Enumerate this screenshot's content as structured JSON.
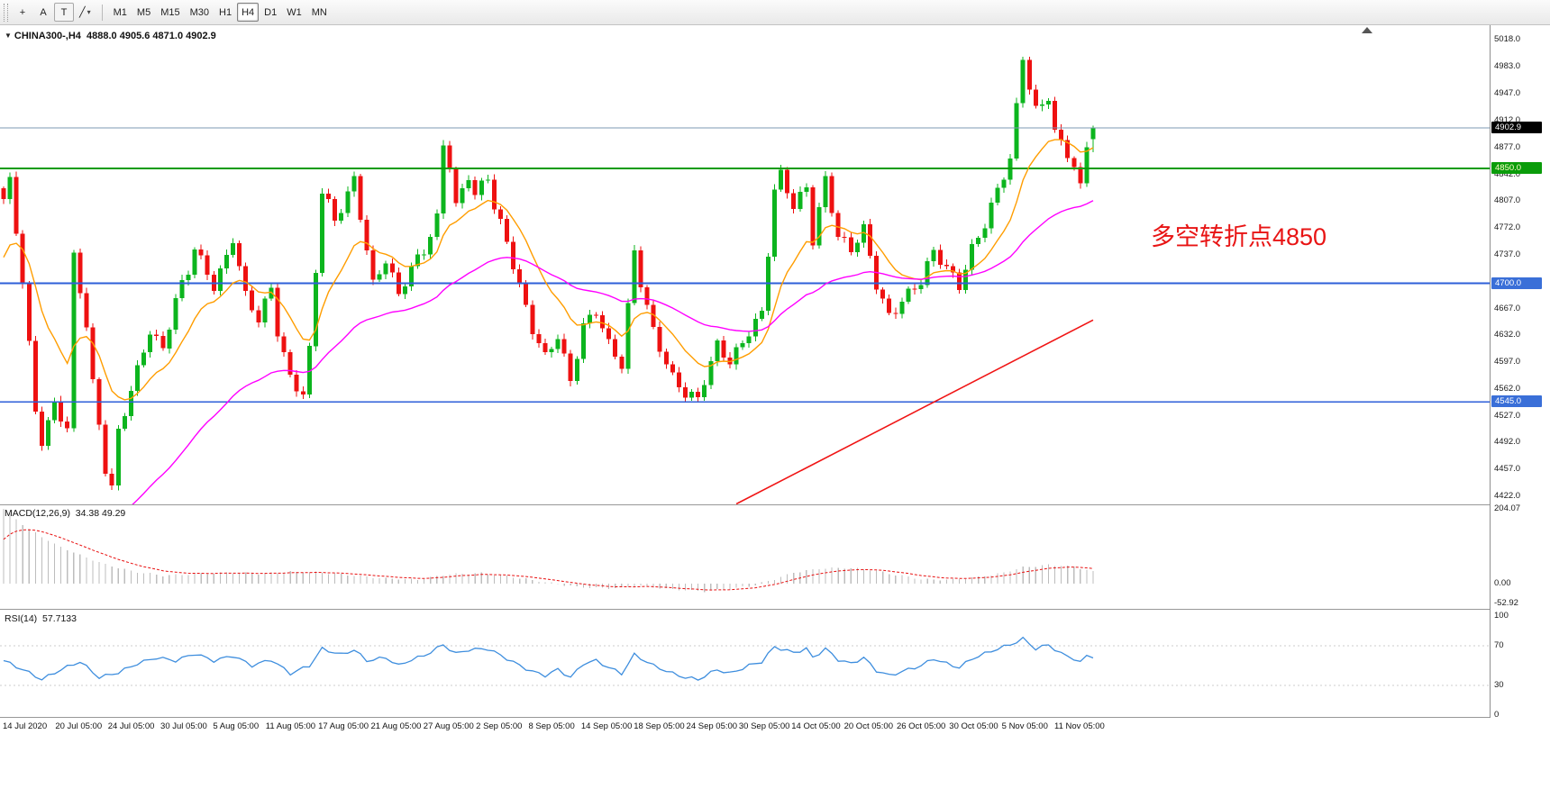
{
  "toolbar": {
    "tools": [
      {
        "id": "crosshair",
        "glyph": "+"
      },
      {
        "id": "text",
        "glyph": "A"
      },
      {
        "id": "text-frame",
        "glyph": "T",
        "boxed": true
      },
      {
        "id": "draw-shapes",
        "glyph": "╱",
        "caret": "▾"
      }
    ],
    "timeframes": [
      "M1",
      "M5",
      "M15",
      "M30",
      "H1",
      "H4",
      "D1",
      "W1",
      "MN"
    ],
    "active_timeframe": "H4"
  },
  "chart": {
    "collapse_glyph": "▼",
    "title": "CHINA300-,H4",
    "ohlc_text": "4888.0 4905.6 4871.0 4902.9",
    "annotation": "多空转折点4850"
  },
  "macd_panel": {
    "label": "MACD(12,26,9)",
    "values": "34.38 49.29"
  },
  "rsi_panel": {
    "label": "RSI(14)",
    "value": "57.7133"
  },
  "chart_data": {
    "type": "candlestick",
    "symbol": "CHINA300-",
    "period": "H4",
    "quote": {
      "open": 4888.0,
      "high": 4905.6,
      "low": 4871.0,
      "close": 4902.9
    },
    "y_axis": {
      "min": 4422.0,
      "max": 5018.0,
      "ticks": [
        5018.0,
        4983.0,
        4947.0,
        4912.0,
        4877.0,
        4842.0,
        4807.0,
        4772.0,
        4737.0,
        4702.0,
        4667.0,
        4632.0,
        4597.0,
        4562.0,
        4527.0,
        4492.0,
        4457.0,
        4422.0
      ]
    },
    "x_axis": {
      "labels": [
        "14 Jul 2020",
        "20 Jul 05:00",
        "24 Jul 05:00",
        "30 Jul 05:00",
        "5 Aug 05:00",
        "11 Aug 05:00",
        "17 Aug 05:00",
        "21 Aug 05:00",
        "27 Aug 05:00",
        "2 Sep 05:00",
        "8 Sep 05:00",
        "14 Sep 05:00",
        "18 Sep 05:00",
        "24 Sep 05:00",
        "30 Sep 05:00",
        "14 Oct 05:00",
        "20 Oct 05:00",
        "26 Oct 05:00",
        "30 Oct 05:00",
        "5 Nov 05:00",
        "11 Nov 05:00"
      ]
    },
    "levels": [
      {
        "price": 4902.9,
        "label": "4902.9",
        "line_color": "#7c98b3",
        "line_width": 1,
        "tag_bg": "#000000",
        "tag_fg": "#ffffff"
      },
      {
        "price": 4850.0,
        "label": "4850.0",
        "line_color": "#0a9c0a",
        "line_width": 2,
        "tag_bg": "#0a9c0a",
        "tag_fg": "#ffffcc"
      },
      {
        "price": 4700.0,
        "label": "4700.0",
        "line_color": "#2e5fd8",
        "line_width": 2,
        "tag_bg": "#3a6fd8",
        "tag_fg": "#ffffff"
      },
      {
        "price": 4545.0,
        "label": "4545.0",
        "line_color": "#2e5fd8",
        "line_width": 1.5,
        "tag_bg": "#3a6fd8",
        "tag_fg": "#ffffff"
      }
    ],
    "trendline": {
      "i1": 115,
      "p1": 4412,
      "i2": 171,
      "p2": 4652,
      "color": "#f01414"
    },
    "candles": {
      "count": 172,
      "wiggle": [
        7,
        1.87,
        4,
        0.53
      ],
      "path": [
        [
          0,
          4810
        ],
        [
          1,
          4830
        ],
        [
          3,
          4700
        ],
        [
          5,
          4530
        ],
        [
          6,
          4495
        ],
        [
          8,
          4545
        ],
        [
          10,
          4515
        ],
        [
          11,
          4735
        ],
        [
          12,
          4690
        ],
        [
          13,
          4645
        ],
        [
          14,
          4565
        ],
        [
          16,
          4455
        ],
        [
          17,
          4432
        ],
        [
          18,
          4505
        ],
        [
          20,
          4565
        ],
        [
          23,
          4640
        ],
        [
          25,
          4610
        ],
        [
          27,
          4675
        ],
        [
          29,
          4715
        ],
        [
          30,
          4748
        ],
        [
          33,
          4700
        ],
        [
          35,
          4735
        ],
        [
          36,
          4758
        ],
        [
          38,
          4680
        ],
        [
          40,
          4650
        ],
        [
          42,
          4695
        ],
        [
          43,
          4640
        ],
        [
          45,
          4580
        ],
        [
          47,
          4556
        ],
        [
          48,
          4610
        ],
        [
          50,
          4818
        ],
        [
          51,
          4800
        ],
        [
          52,
          4778
        ],
        [
          54,
          4818
        ],
        [
          55,
          4838
        ],
        [
          57,
          4748
        ],
        [
          58,
          4700
        ],
        [
          60,
          4730
        ],
        [
          62,
          4680
        ],
        [
          64,
          4718
        ],
        [
          66,
          4745
        ],
        [
          68,
          4788
        ],
        [
          69,
          4885
        ],
        [
          70,
          4858
        ],
        [
          71,
          4800
        ],
        [
          73,
          4838
        ],
        [
          74,
          4810
        ],
        [
          76,
          4838
        ],
        [
          77,
          4800
        ],
        [
          79,
          4758
        ],
        [
          81,
          4700
        ],
        [
          83,
          4640
        ],
        [
          85,
          4600
        ],
        [
          87,
          4628
        ],
        [
          89,
          4572
        ],
        [
          91,
          4648
        ],
        [
          93,
          4668
        ],
        [
          95,
          4620
        ],
        [
          97,
          4590
        ],
        [
          99,
          4738
        ],
        [
          100,
          4700
        ],
        [
          102,
          4640
        ],
        [
          105,
          4580
        ],
        [
          107,
          4556
        ],
        [
          109,
          4545
        ],
        [
          110,
          4570
        ],
        [
          112,
          4618
        ],
        [
          114,
          4600
        ],
        [
          117,
          4640
        ],
        [
          119,
          4660
        ],
        [
          121,
          4818
        ],
        [
          122,
          4838
        ],
        [
          124,
          4800
        ],
        [
          126,
          4828
        ],
        [
          127,
          4760
        ],
        [
          129,
          4838
        ],
        [
          131,
          4760
        ],
        [
          133,
          4740
        ],
        [
          135,
          4768
        ],
        [
          137,
          4700
        ],
        [
          139,
          4660
        ],
        [
          141,
          4680
        ],
        [
          144,
          4700
        ],
        [
          146,
          4738
        ],
        [
          148,
          4720
        ],
        [
          150,
          4700
        ],
        [
          152,
          4748
        ],
        [
          154,
          4778
        ],
        [
          156,
          4818
        ],
        [
          158,
          4858
        ],
        [
          160,
          4996
        ],
        [
          161,
          4958
        ],
        [
          162,
          4928
        ],
        [
          164,
          4948
        ],
        [
          165,
          4898
        ],
        [
          167,
          4868
        ],
        [
          168,
          4848
        ],
        [
          169,
          4820
        ],
        [
          170,
          4878
        ],
        [
          171,
          4902.9
        ]
      ]
    },
    "moving_averages": [
      {
        "period": 12,
        "seed": 4720,
        "color": "#ff9d00"
      },
      {
        "period": 45,
        "seed": 4150,
        "color": "#ff00ff"
      }
    ],
    "macd": {
      "params": "12,26,9",
      "value": 34.38,
      "signal": 49.29,
      "signal_seed": 100,
      "scale": [
        204.07,
        0.0,
        -52.92
      ],
      "path": [
        [
          0,
          204
        ],
        [
          4,
          148
        ],
        [
          8,
          108
        ],
        [
          12,
          78
        ],
        [
          16,
          52
        ],
        [
          20,
          34
        ],
        [
          25,
          22
        ],
        [
          30,
          26
        ],
        [
          35,
          30
        ],
        [
          40,
          27
        ],
        [
          45,
          32
        ],
        [
          50,
          30
        ],
        [
          55,
          22
        ],
        [
          60,
          14
        ],
        [
          65,
          11
        ],
        [
          70,
          26
        ],
        [
          75,
          28
        ],
        [
          80,
          18
        ],
        [
          85,
          4
        ],
        [
          90,
          -9
        ],
        [
          95,
          -13
        ],
        [
          100,
          -6
        ],
        [
          105,
          -16
        ],
        [
          110,
          -21
        ],
        [
          115,
          -12
        ],
        [
          118,
          -4
        ],
        [
          121,
          12
        ],
        [
          124,
          30
        ],
        [
          128,
          41
        ],
        [
          132,
          43
        ],
        [
          136,
          38
        ],
        [
          140,
          24
        ],
        [
          144,
          12
        ],
        [
          148,
          10
        ],
        [
          152,
          16
        ],
        [
          156,
          26
        ],
        [
          160,
          44
        ],
        [
          164,
          51
        ],
        [
          168,
          46
        ],
        [
          171,
          34.38
        ]
      ]
    },
    "rsi": {
      "period": 14,
      "value": 57.7133,
      "levels": [
        70,
        30
      ],
      "scale": [
        100,
        70,
        30,
        0
      ],
      "path": [
        [
          0,
          55
        ],
        [
          3,
          46
        ],
        [
          6,
          36
        ],
        [
          9,
          46
        ],
        [
          12,
          54
        ],
        [
          15,
          38
        ],
        [
          18,
          43
        ],
        [
          21,
          52
        ],
        [
          24,
          58
        ],
        [
          27,
          55
        ],
        [
          30,
          62
        ],
        [
          33,
          55
        ],
        [
          36,
          60
        ],
        [
          39,
          50
        ],
        [
          42,
          56
        ],
        [
          45,
          42
        ],
        [
          48,
          50
        ],
        [
          50,
          67
        ],
        [
          53,
          61
        ],
        [
          55,
          66
        ],
        [
          57,
          55
        ],
        [
          60,
          58
        ],
        [
          62,
          50
        ],
        [
          64,
          56
        ],
        [
          66,
          60
        ],
        [
          69,
          71
        ],
        [
          71,
          62
        ],
        [
          73,
          66
        ],
        [
          76,
          67
        ],
        [
          79,
          57
        ],
        [
          81,
          50
        ],
        [
          83,
          44
        ],
        [
          85,
          40
        ],
        [
          87,
          46
        ],
        [
          89,
          38
        ],
        [
          91,
          52
        ],
        [
          93,
          55
        ],
        [
          95,
          48
        ],
        [
          97,
          42
        ],
        [
          99,
          61
        ],
        [
          102,
          50
        ],
        [
          105,
          42
        ],
        [
          107,
          38
        ],
        [
          109,
          36
        ],
        [
          112,
          46
        ],
        [
          114,
          42
        ],
        [
          117,
          50
        ],
        [
          119,
          54
        ],
        [
          121,
          69
        ],
        [
          124,
          63
        ],
        [
          126,
          67
        ],
        [
          127,
          58
        ],
        [
          129,
          67
        ],
        [
          131,
          56
        ],
        [
          133,
          52
        ],
        [
          135,
          58
        ],
        [
          137,
          45
        ],
        [
          139,
          40
        ],
        [
          141,
          44
        ],
        [
          144,
          50
        ],
        [
          146,
          57
        ],
        [
          148,
          52
        ],
        [
          150,
          48
        ],
        [
          152,
          57
        ],
        [
          154,
          62
        ],
        [
          156,
          67
        ],
        [
          158,
          71
        ],
        [
          160,
          77
        ],
        [
          162,
          67
        ],
        [
          164,
          71
        ],
        [
          166,
          62
        ],
        [
          168,
          57
        ],
        [
          169,
          53
        ],
        [
          170,
          60
        ],
        [
          171,
          57.7133
        ]
      ]
    },
    "colors": {
      "up": "#0cb51e",
      "down": "#ee1111",
      "macd_bar": "#bdbdbd",
      "macd_signal": "#e81010",
      "rsi_line": "#3e8ede"
    }
  }
}
